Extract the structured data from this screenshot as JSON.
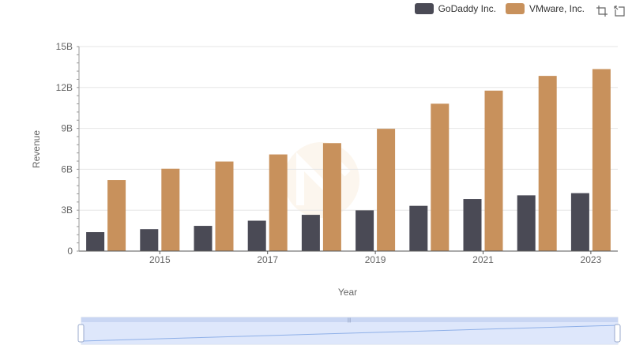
{
  "legend": [
    {
      "name": "GoDaddy Inc.",
      "color": "#4a4a55"
    },
    {
      "name": "VMware, Inc.",
      "color": "#c8915c"
    }
  ],
  "toolbox": {
    "zoom_icon": "zoom-select-icon",
    "reset_icon": "zoom-reset-icon"
  },
  "chart_data": {
    "type": "bar",
    "xlabel": "Year",
    "ylabel": "Revenue",
    "x": [
      2014,
      2015,
      2016,
      2017,
      2018,
      2019,
      2020,
      2021,
      2022,
      2023
    ],
    "x_tick_labels": [
      "2015",
      "2017",
      "2019",
      "2021",
      "2023"
    ],
    "y_tick_labels": [
      "0",
      "3B",
      "6B",
      "9B",
      "12B",
      "15B"
    ],
    "ylim": [
      0,
      15000000000
    ],
    "grid": true,
    "legend_position": "top-right",
    "series": [
      {
        "name": "GoDaddy Inc.",
        "color": "#4a4a55",
        "values": [
          1390000000,
          1610000000,
          1850000000,
          2230000000,
          2660000000,
          2990000000,
          3320000000,
          3820000000,
          4090000000,
          4250000000
        ]
      },
      {
        "name": "VMware, Inc.",
        "color": "#c8915c",
        "values": [
          5210000000,
          6040000000,
          6570000000,
          7090000000,
          7920000000,
          8970000000,
          10810000000,
          11770000000,
          12850000000,
          13350000000
        ]
      }
    ]
  }
}
